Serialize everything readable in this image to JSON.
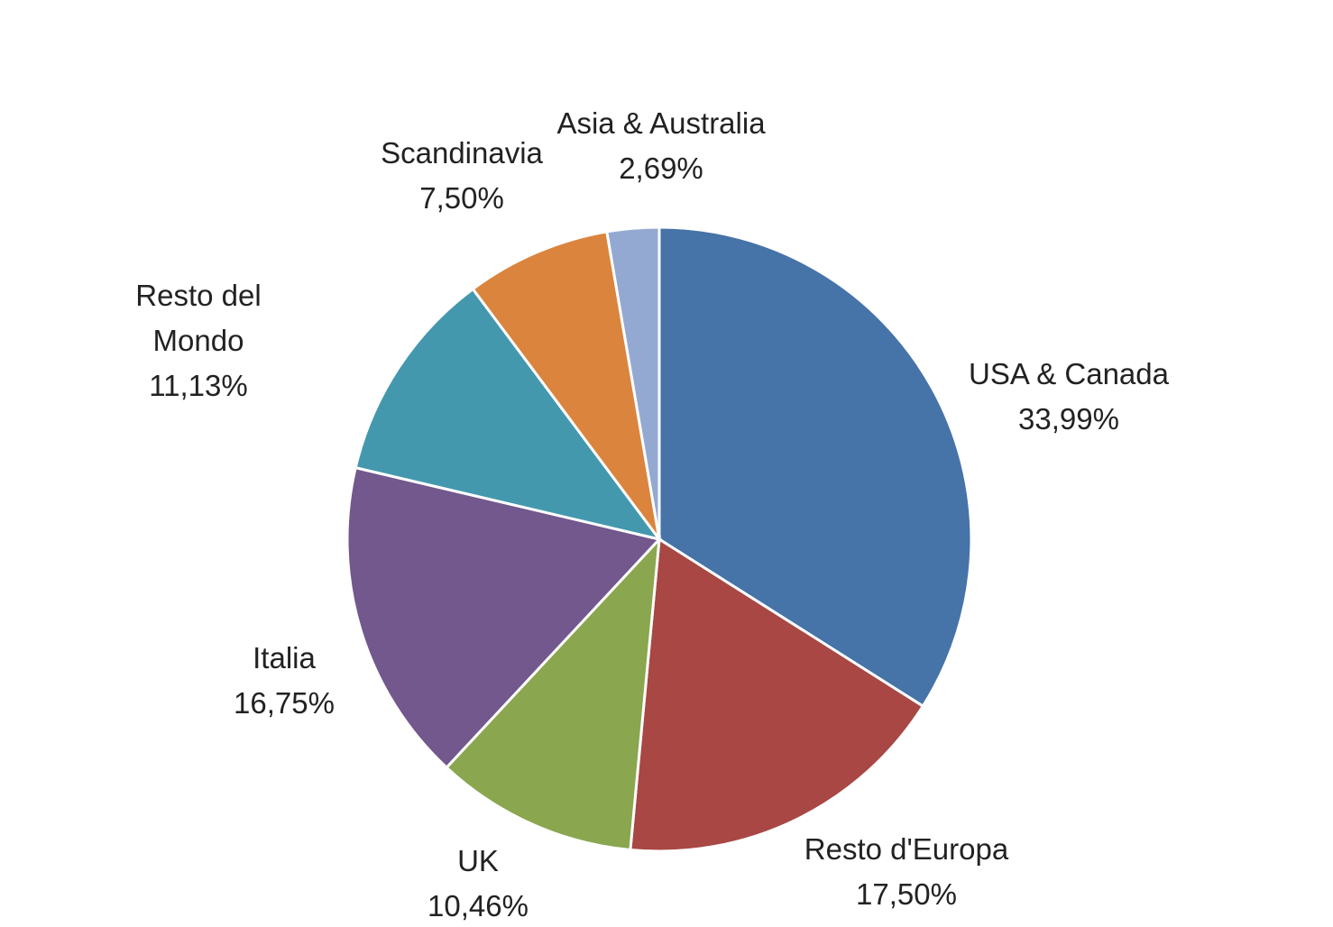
{
  "chart_data": {
    "type": "pie",
    "categories": [
      "USA & Canada",
      "Resto d'Europa",
      "UK",
      "Italia",
      "Resto del Mondo",
      "Scandinavia",
      "Asia & Australia"
    ],
    "values": [
      33.99,
      17.5,
      10.46,
      16.75,
      11.13,
      7.5,
      2.69
    ],
    "value_labels": [
      "33,99%",
      "17,50%",
      "10,46%",
      "16,75%",
      "11,13%",
      "7,50%",
      "2,69%"
    ],
    "colors": [
      "#4673a8",
      "#a84744",
      "#8aa64f",
      "#72588d",
      "#4498ae",
      "#db843d",
      "#94a9d1"
    ]
  }
}
